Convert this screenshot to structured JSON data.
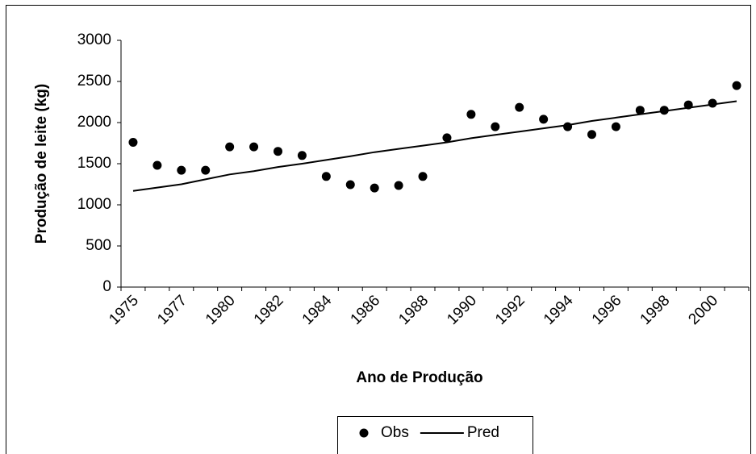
{
  "chart_data": {
    "type": "line",
    "x_label": "Ano de Produção",
    "y_label": "Produção de leite (kg)",
    "categories": [
      "1975",
      null,
      "1977",
      null,
      "1980",
      null,
      "1982",
      null,
      "1984",
      null,
      "1986",
      null,
      "1988",
      null,
      "1990",
      null,
      "1992",
      null,
      "1994",
      null,
      "1996",
      null,
      "1998",
      null,
      "2000",
      null
    ],
    "series": [
      {
        "name": "Obs",
        "color": "#000000",
        "style": "markers",
        "values": [
          1760,
          1480,
          1420,
          1420,
          1705,
          1705,
          1650,
          1600,
          1345,
          1245,
          1205,
          1235,
          1345,
          1815,
          2100,
          1950,
          2185,
          2040,
          1950,
          1855,
          1950,
          2150,
          2150,
          2215,
          2235,
          2450
        ]
      },
      {
        "name": "Pred",
        "color": "#000000",
        "style": "line",
        "values": [
          1170,
          1210,
          1250,
          1310,
          1370,
          1410,
          1460,
          1500,
          1545,
          1590,
          1640,
          1680,
          1720,
          1760,
          1810,
          1850,
          1890,
          1930,
          1970,
          2020,
          2060,
          2100,
          2140,
          2180,
          2220,
          2260
        ]
      }
    ],
    "ylim": [
      0,
      3000
    ],
    "yticks": [
      0,
      500,
      1000,
      1500,
      2000,
      2500,
      3000
    ],
    "grid": false,
    "legend": "bottom"
  }
}
